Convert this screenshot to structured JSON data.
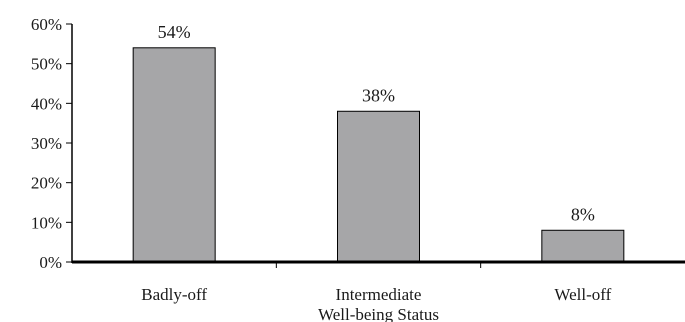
{
  "chart_data": {
    "type": "bar",
    "categories": [
      "Badly-off",
      "Intermediate",
      "Well-off"
    ],
    "values": [
      54,
      38,
      8
    ],
    "data_labels": [
      "54%",
      "38%",
      "8%"
    ],
    "xlabel": "Well-being Status",
    "ylabel": "",
    "ylim": [
      0,
      60
    ],
    "y_ticks": [
      0,
      10,
      20,
      30,
      40,
      50,
      60
    ],
    "y_tick_labels": [
      "0%",
      "10%",
      "20%",
      "30%",
      "40%",
      "50%",
      "60%"
    ],
    "grid": false,
    "legend": "none",
    "colors": {
      "bar": "#a6a6a8",
      "bar_edge": "#000000",
      "axis": "#000000"
    }
  }
}
